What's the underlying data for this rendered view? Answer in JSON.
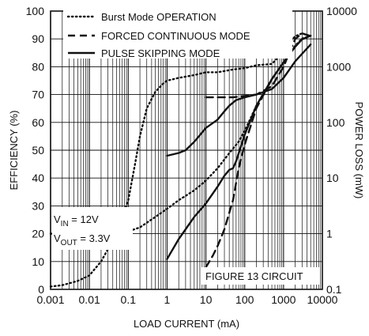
{
  "chart_data": {
    "type": "line",
    "title": "",
    "xlabel": "LOAD CURRENT (mA)",
    "ylabel_left": "EFFICIENCY (%)",
    "ylabel_right": "POWER LOSS (mW)",
    "x_scale": "log",
    "xlim": [
      0.001,
      10000
    ],
    "ylim_left": [
      0,
      100
    ],
    "ylim_right": [
      0.1,
      10000
    ],
    "y_right_scale": "log",
    "grid": true,
    "legend_position": "top-left",
    "x_tick_labels": [
      "0.001",
      "0.01",
      "0.1",
      "1",
      "10",
      "100",
      "1000",
      "10000"
    ],
    "y_left_tick_labels": [
      "0",
      "10",
      "20",
      "30",
      "40",
      "50",
      "60",
      "70",
      "80",
      "90",
      "100"
    ],
    "y_right_tick_labels": [
      "0.1",
      "1",
      "10",
      "100",
      "1000",
      "10000"
    ],
    "legend": [
      {
        "label": "Burst Mode OPERATION",
        "style": "dotted"
      },
      {
        "label": "FORCED CONTINUOUS MODE",
        "style": "dashed"
      },
      {
        "label": "PULSE SKIPPING MODE",
        "style": "solid"
      }
    ],
    "annotations": {
      "vin": {
        "symbol": "V",
        "sub": "IN",
        "rest": " = 12V"
      },
      "vout": {
        "symbol": "V",
        "sub": "OUT",
        "rest": " = 3.3V"
      },
      "figure": "FIGURE 13 CIRCUIT"
    },
    "series": [
      {
        "name": "Burst Mode OPERATION",
        "quantity": "efficiency",
        "axis": "left",
        "style": "dotted",
        "points": [
          [
            0.001,
            1
          ],
          [
            0.002,
            1.5
          ],
          [
            0.005,
            3
          ],
          [
            0.01,
            5
          ],
          [
            0.02,
            10
          ],
          [
            0.05,
            20
          ],
          [
            0.1,
            32
          ],
          [
            0.15,
            45
          ],
          [
            0.2,
            55
          ],
          [
            0.3,
            65
          ],
          [
            0.5,
            71
          ],
          [
            0.8,
            74
          ],
          [
            1,
            75
          ],
          [
            2,
            76
          ],
          [
            5,
            77
          ],
          [
            10,
            78
          ],
          [
            20,
            78
          ],
          [
            50,
            79
          ],
          [
            100,
            79.5
          ],
          [
            200,
            80.5
          ],
          [
            500,
            81
          ],
          [
            800,
            84
          ],
          [
            1000,
            86
          ],
          [
            1500,
            89
          ],
          [
            2000,
            91
          ],
          [
            3000,
            92
          ],
          [
            5000,
            91
          ]
        ]
      },
      {
        "name": "Burst Mode OPERATION",
        "quantity": "power_loss",
        "axis": "right",
        "style": "dotted",
        "points": [
          [
            0.001,
            1
          ],
          [
            0.01,
            1
          ],
          [
            0.05,
            1.05
          ],
          [
            0.1,
            1.1
          ],
          [
            0.2,
            1.3
          ],
          [
            0.5,
            2
          ],
          [
            1,
            2.8
          ],
          [
            2,
            4
          ],
          [
            5,
            6
          ],
          [
            10,
            9
          ],
          [
            20,
            15
          ],
          [
            40,
            28
          ],
          [
            70,
            45
          ],
          [
            100,
            70
          ],
          [
            200,
            200
          ],
          [
            500,
            600
          ],
          [
            1000,
            1200
          ],
          [
            1500,
            1800
          ],
          [
            2000,
            2400
          ],
          [
            3000,
            3200
          ],
          [
            5000,
            3600
          ]
        ]
      },
      {
        "name": "FORCED CONTINUOUS MODE",
        "quantity": "efficiency",
        "axis": "left",
        "style": "dashed",
        "points": [
          [
            10,
            69
          ],
          [
            20,
            69
          ],
          [
            50,
            69
          ],
          [
            100,
            69.5
          ],
          [
            200,
            70
          ],
          [
            500,
            73
          ],
          [
            1000,
            80
          ],
          [
            1500,
            86
          ],
          [
            2000,
            90
          ],
          [
            3000,
            92
          ],
          [
            5000,
            91
          ]
        ]
      },
      {
        "name": "FORCED CONTINUOUS MODE",
        "quantity": "power_loss",
        "axis": "right",
        "style": "dashed",
        "points": [
          [
            10,
            0.25
          ],
          [
            15,
            0.4
          ],
          [
            20,
            0.6
          ],
          [
            30,
            1.2
          ],
          [
            50,
            4
          ],
          [
            70,
            15
          ],
          [
            100,
            40
          ],
          [
            200,
            180
          ],
          [
            500,
            600
          ],
          [
            1000,
            1200
          ],
          [
            2000,
            2300
          ],
          [
            3000,
            3100
          ],
          [
            5000,
            3600
          ]
        ]
      },
      {
        "name": "PULSE SKIPPING MODE",
        "quantity": "efficiency",
        "axis": "left",
        "style": "solid",
        "points": [
          [
            1,
            48
          ],
          [
            2,
            49
          ],
          [
            3,
            50
          ],
          [
            5,
            53
          ],
          [
            10,
            58
          ],
          [
            20,
            61
          ],
          [
            30,
            64
          ],
          [
            40,
            66
          ],
          [
            60,
            68
          ],
          [
            100,
            69
          ],
          [
            200,
            70
          ],
          [
            500,
            72
          ],
          [
            1000,
            76
          ],
          [
            2000,
            82
          ],
          [
            5000,
            88
          ]
        ]
      },
      {
        "name": "PULSE SKIPPING MODE",
        "quantity": "power_loss",
        "axis": "right",
        "style": "solid",
        "points": [
          [
            1,
            0.35
          ],
          [
            2,
            0.8
          ],
          [
            3,
            1.2
          ],
          [
            5,
            2
          ],
          [
            10,
            3.5
          ],
          [
            20,
            7
          ],
          [
            30,
            11
          ],
          [
            40,
            14
          ],
          [
            50,
            15
          ],
          [
            60,
            20
          ],
          [
            100,
            60
          ],
          [
            200,
            200
          ],
          [
            500,
            600
          ],
          [
            1000,
            1200
          ],
          [
            2000,
            2300
          ],
          [
            3000,
            3100
          ],
          [
            5000,
            3600
          ]
        ]
      }
    ]
  }
}
